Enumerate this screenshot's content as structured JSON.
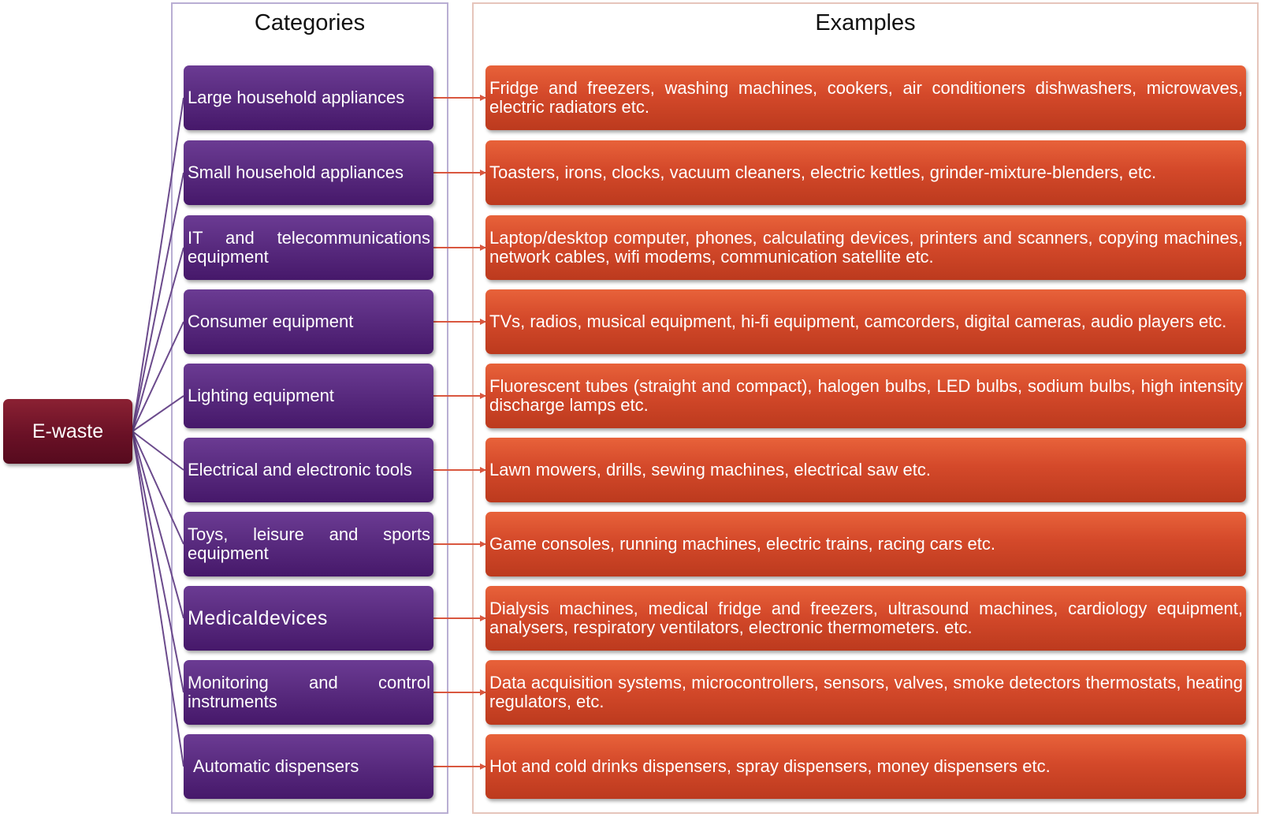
{
  "headers": {
    "categories": "Categories",
    "examples": "Examples"
  },
  "root_label": "E-waste",
  "colors": {
    "root": "#6a1126",
    "category": "#582a7e",
    "example": "#d4492a",
    "fan_line": "#6b4a8c",
    "arrow_line": "#d9573f"
  },
  "rows": [
    {
      "category": "Large household appliances",
      "examples": "Fridge and freezers, washing machines, cookers, air conditioners dishwashers, microwaves, electric radiators etc."
    },
    {
      "category": "Small household appliances",
      "examples": "Toasters, irons, clocks, vacuum cleaners, electric kettles, grinder-mixture-blenders, etc."
    },
    {
      "category": "IT and telecommunications equipment",
      "examples": "Laptop/desktop computer, phones, calculating devices, printers and scanners, copying machines, network cables, wifi modems, communication satellite etc."
    },
    {
      "category": "Consumer equipment",
      "examples": "TVs, radios, musical equipment, hi-fi equipment, camcorders, digital cameras, audio players etc."
    },
    {
      "category": "Lighting equipment",
      "examples": "Fluorescent tubes (straight and compact), halogen bulbs, LED bulbs, sodium bulbs, high intensity discharge lamps etc."
    },
    {
      "category": "Electrical and electronic tools",
      "examples": "Lawn mowers, drills, sewing machines, electrical saw etc."
    },
    {
      "category": "Toys, leisure and sports equipment",
      "examples": "Game consoles, running machines, electric trains, racing cars etc."
    },
    {
      "category": "Medicaldevices",
      "examples": "Dialysis machines, medical fridge and freezers, ultrasound machines, cardiology equipment, analysers, respiratory ventilators, electronic thermometers. etc."
    },
    {
      "category": "Monitoring and control instruments",
      "examples": "Data acquisition systems, microcontrollers, sensors, valves, smoke detectors thermostats, heating regulators, etc."
    },
    {
      "category": "Automatic dispensers",
      "examples": "Hot and cold drinks dispensers, spray dispensers, money dispensers etc."
    }
  ]
}
